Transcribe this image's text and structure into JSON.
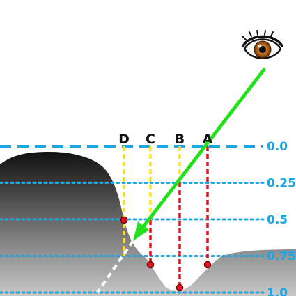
{
  "colors": {
    "depth_line": "#1aa7e6",
    "ray": "#22e01a",
    "ray_below": "#ffffff",
    "sample_line_red": "#e0141e",
    "sample_line_yellow": "#ffe11a",
    "terrain_dark": "#111111",
    "terrain_light": "#c8c8c8",
    "point_fill": "#e0141e",
    "point_ring": "#7a0008"
  },
  "icons": {
    "eye": "eye-icon"
  },
  "depth_levels": [
    {
      "value": 0.0,
      "label": "0.0"
    },
    {
      "value": 0.25,
      "label": "0.25"
    },
    {
      "value": 0.5,
      "label": "0.5"
    },
    {
      "value": 0.75,
      "label": "0.75"
    },
    {
      "value": 1.0,
      "label": "1.0"
    }
  ],
  "samples": [
    {
      "label": "A"
    },
    {
      "label": "B"
    },
    {
      "label": "C"
    },
    {
      "label": "D"
    }
  ]
}
